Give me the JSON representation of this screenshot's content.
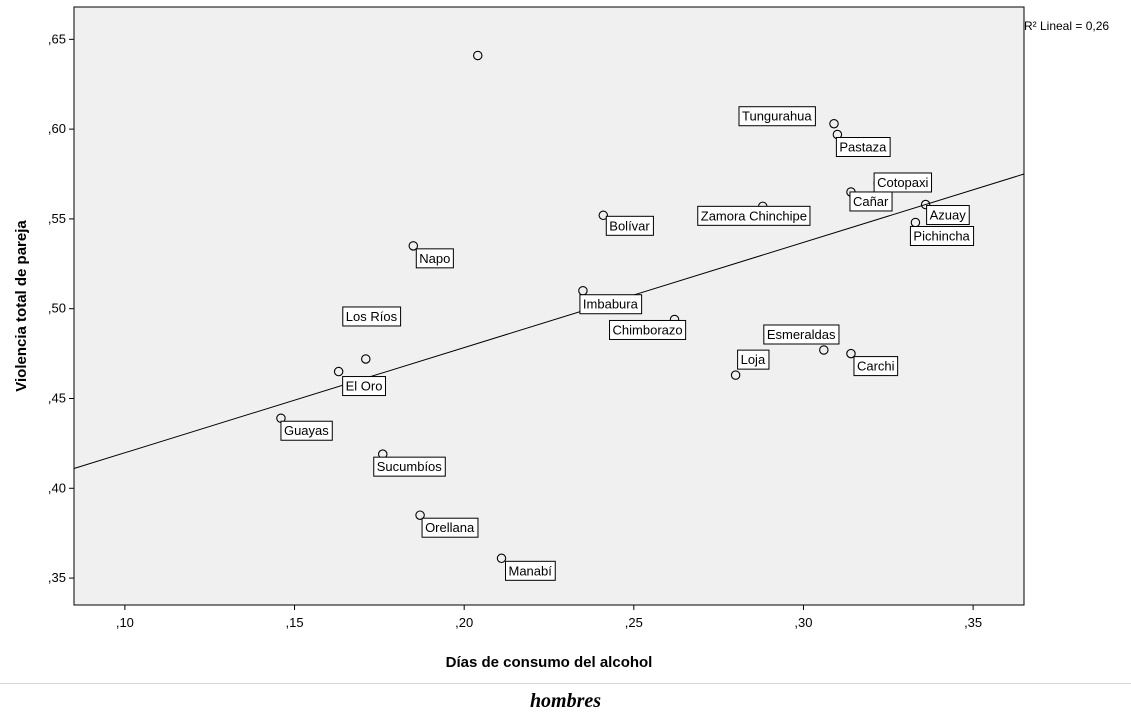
{
  "caption": "hombres",
  "chart_data": {
    "type": "scatter",
    "xlabel": "Días de consumo del alcohol",
    "ylabel": "Violencia total de pareja",
    "xlim": [
      0.085,
      0.365
    ],
    "ylim": [
      0.335,
      0.668
    ],
    "xticks": [
      0.1,
      0.15,
      0.2,
      0.25,
      0.3,
      0.35
    ],
    "xtick_labels": [
      ",10",
      ",15",
      ",20",
      ",25",
      ",30",
      ",35"
    ],
    "yticks": [
      0.35,
      0.4,
      0.45,
      0.5,
      0.55,
      0.6,
      0.65
    ],
    "ytick_labels": [
      ",35",
      ",40",
      ",45",
      ",50",
      ",55",
      ",60",
      ",65"
    ],
    "background_color": "#f0f0f0",
    "grid": false,
    "fit_line": {
      "type": "linear",
      "r2_label": "R² Lineal = 0,26",
      "x": [
        0.085,
        0.365
      ],
      "y": [
        0.411,
        0.575
      ]
    },
    "points": [
      {
        "label": "",
        "x": 0.204,
        "y": 0.641
      },
      {
        "label": "Tungurahua",
        "x": 0.309,
        "y": 0.603
      },
      {
        "label": "Pastaza",
        "x": 0.31,
        "y": 0.597
      },
      {
        "label": "Cotopaxi",
        "x": 0.322,
        "y": 0.57
      },
      {
        "label": "Cañar",
        "x": 0.314,
        "y": 0.565
      },
      {
        "label": "Azuay",
        "x": 0.336,
        "y": 0.558
      },
      {
        "label": "Zamora Chinchipe",
        "x": 0.288,
        "y": 0.557
      },
      {
        "label": "Pichincha",
        "x": 0.333,
        "y": 0.548
      },
      {
        "label": "Bolívar",
        "x": 0.241,
        "y": 0.552
      },
      {
        "label": "Napo",
        "x": 0.185,
        "y": 0.535
      },
      {
        "label": "Imbabura",
        "x": 0.235,
        "y": 0.51
      },
      {
        "label": "Chimborazo",
        "x": 0.262,
        "y": 0.494
      },
      {
        "label": "Esmeraldas",
        "x": 0.306,
        "y": 0.477
      },
      {
        "label": "Carchi",
        "x": 0.314,
        "y": 0.475
      },
      {
        "label": "Loja",
        "x": 0.28,
        "y": 0.463
      },
      {
        "label": "Los Ríos",
        "x": 0.171,
        "y": 0.472
      },
      {
        "label": "El Oro",
        "x": 0.163,
        "y": 0.465
      },
      {
        "label": "Guayas",
        "x": 0.146,
        "y": 0.439
      },
      {
        "label": "Sucumbíos",
        "x": 0.176,
        "y": 0.419
      },
      {
        "label": "Orellana",
        "x": 0.187,
        "y": 0.385
      },
      {
        "label": "Manabí",
        "x": 0.211,
        "y": 0.361
      }
    ]
  }
}
